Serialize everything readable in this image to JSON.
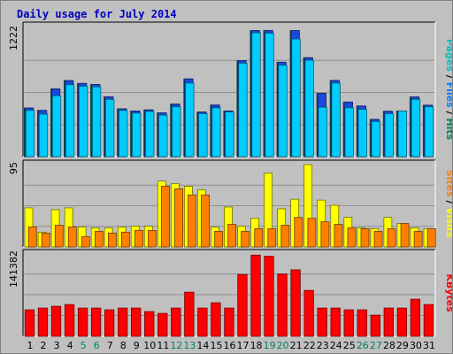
{
  "title": "Daily usage for July 2014",
  "chart_data": [
    {
      "type": "bar",
      "panel": "hits-files-pages",
      "axis_max_label": "1222",
      "ylim": [
        0,
        1222
      ],
      "right_label": [
        {
          "text": "Pages",
          "color": "#00c0c0"
        },
        {
          "text": " / ",
          "color": "#000000"
        },
        {
          "text": "Files",
          "color": "#0080ff"
        },
        {
          "text": " / ",
          "color": "#000000"
        },
        {
          "text": "Hits",
          "color": "#008060"
        }
      ],
      "series": [
        {
          "name": "Hits",
          "color": "#008080",
          "values": [
            463,
            440,
            645,
            725,
            697,
            687,
            570,
            455,
            435,
            445,
            418,
            500,
            740,
            425,
            491,
            435,
            915,
            1200,
            1200,
            899,
            1200,
            942,
            602,
            726,
            520,
            482,
            355,
            432,
            435,
            568,
            490
          ]
        },
        {
          "name": "Files",
          "color": "#1a48d8",
          "values": [
            463,
            440,
            645,
            725,
            697,
            687,
            570,
            455,
            435,
            445,
            418,
            500,
            740,
            425,
            491,
            435,
            915,
            1200,
            1200,
            899,
            1200,
            942,
            602,
            726,
            520,
            482,
            355,
            432,
            435,
            568,
            490
          ]
        },
        {
          "name": "Pages",
          "color": "#00ccff",
          "values": [
            440,
            405,
            580,
            685,
            670,
            665,
            545,
            440,
            415,
            430,
            395,
            475,
            700,
            410,
            465,
            425,
            890,
            1180,
            1175,
            870,
            1120,
            918,
            470,
            700,
            465,
            450,
            335,
            410,
            435,
            545,
            475
          ]
        }
      ]
    },
    {
      "type": "bar",
      "panel": "visits-sites",
      "axis_max_label": "95",
      "ylim": [
        0,
        95
      ],
      "right_label": [
        {
          "text": "Sites",
          "color": "#ff8000"
        },
        {
          "text": " / ",
          "color": "#000000"
        },
        {
          "text": "Visits",
          "color": "#ffff00"
        }
      ],
      "series": [
        {
          "name": "Visits",
          "color": "#ffff00",
          "values": [
            45,
            17,
            43,
            45,
            23,
            22,
            22,
            23,
            24,
            24,
            76,
            73,
            70,
            66,
            23,
            46,
            24,
            33,
            85,
            44,
            55,
            95,
            54,
            48,
            34,
            22,
            21,
            34,
            27,
            22,
            21
          ]
        },
        {
          "name": "Sites",
          "color": "#ff8000",
          "values": [
            23,
            16,
            25,
            23,
            12,
            18,
            16,
            17,
            19,
            19,
            70,
            67,
            60,
            60,
            18,
            26,
            18,
            21,
            21,
            25,
            34,
            33,
            29,
            26,
            22,
            21,
            18,
            21,
            27,
            18,
            21
          ]
        }
      ]
    },
    {
      "type": "bar",
      "panel": "kbytes",
      "axis_max_label": "141382",
      "ylim": [
        0,
        141382
      ],
      "right_label": [
        {
          "text": "KBytes",
          "color": "#ff0000"
        }
      ],
      "series": [
        {
          "name": "KBytes",
          "color": "#ff0000",
          "values": [
            45000,
            48000,
            51000,
            54000,
            48000,
            48000,
            45000,
            48000,
            48000,
            42000,
            39000,
            48000,
            75000,
            48000,
            57000,
            48000,
            105000,
            138000,
            136000,
            106000,
            113000,
            78000,
            48000,
            48000,
            45000,
            45000,
            36000,
            48000,
            48000,
            63000,
            54000
          ]
        }
      ]
    }
  ],
  "x_labels": {
    "categories": [
      "1",
      "2",
      "3",
      "4",
      "5",
      "6",
      "7",
      "8",
      "9",
      "10",
      "11",
      "12",
      "13",
      "14",
      "15",
      "16",
      "17",
      "18",
      "19",
      "20",
      "21",
      "22",
      "23",
      "24",
      "25",
      "26",
      "27",
      "28",
      "29",
      "30",
      "31"
    ],
    "weekday_color": "#000000",
    "weekend_color": "#008060",
    "weekend_days": [
      5,
      6,
      12,
      13,
      19,
      20,
      26,
      27
    ]
  }
}
